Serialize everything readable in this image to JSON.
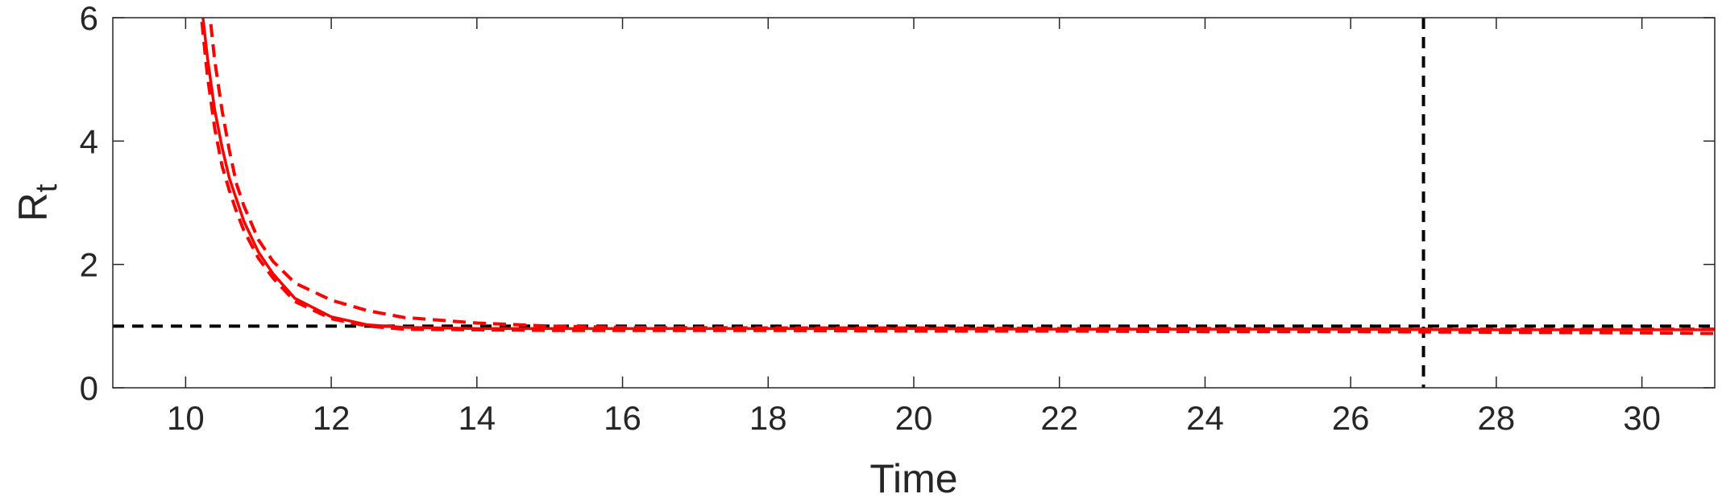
{
  "chart_data": {
    "type": "line",
    "title": "",
    "xlabel": "Time",
    "ylabel": {
      "main": "R",
      "subscript": "t"
    },
    "xlim": [
      9,
      31
    ],
    "ylim": [
      0,
      6
    ],
    "xticks": [
      "10",
      "12",
      "14",
      "16",
      "18",
      "20",
      "22",
      "24",
      "26",
      "28",
      "30"
    ],
    "yticks": [
      "0",
      "2",
      "4",
      "6"
    ],
    "grid": false,
    "legend": "none",
    "colors": {
      "series": "#ff0000",
      "reference": "#000000",
      "axes": "#262626"
    },
    "series": [
      {
        "style": "solid",
        "x": [
          10.0,
          10.2,
          10.3,
          10.4,
          10.5,
          10.6,
          10.7,
          10.8,
          11.0,
          11.2,
          11.5,
          12.0,
          12.5,
          13.0,
          14.0,
          15.0,
          16.0,
          18.0,
          20.0,
          22.0,
          24.0,
          26.0,
          28.0,
          30.0,
          31.0
        ],
        "y": [
          8.5,
          6.4,
          5.35,
          4.5,
          3.9,
          3.4,
          3.05,
          2.7,
          2.2,
          1.85,
          1.45,
          1.15,
          1.02,
          0.98,
          0.96,
          0.96,
          0.96,
          0.96,
          0.96,
          0.95,
          0.95,
          0.95,
          0.94,
          0.94,
          0.94
        ]
      },
      {
        "style": "dashed",
        "x": [
          10.0,
          10.3,
          10.4,
          10.5,
          10.6,
          10.7,
          10.8,
          11.0,
          11.2,
          11.5,
          12.0,
          12.5,
          13.0,
          14.0,
          15.0,
          16.0,
          18.0,
          20.0,
          22.0,
          24.0,
          26.0,
          28.0,
          30.0,
          31.0
        ],
        "y": [
          8.8,
          6.4,
          5.3,
          4.5,
          3.85,
          3.3,
          2.95,
          2.4,
          2.05,
          1.7,
          1.42,
          1.25,
          1.14,
          1.05,
          1.0,
          0.98,
          0.97,
          0.97,
          0.96,
          0.96,
          0.95,
          0.95,
          0.95,
          0.95
        ]
      },
      {
        "style": "dashed",
        "x": [
          10.0,
          10.2,
          10.3,
          10.4,
          10.5,
          10.6,
          10.7,
          10.8,
          11.0,
          11.2,
          11.5,
          12.0,
          12.5,
          13.0,
          14.0,
          15.0,
          16.0,
          18.0,
          20.0,
          22.0,
          24.0,
          26.0,
          28.0,
          30.0,
          31.0
        ],
        "y": [
          8.2,
          6.2,
          5.05,
          4.2,
          3.6,
          3.2,
          2.85,
          2.55,
          2.1,
          1.78,
          1.4,
          1.12,
          1.0,
          0.95,
          0.94,
          0.93,
          0.93,
          0.93,
          0.92,
          0.92,
          0.91,
          0.91,
          0.9,
          0.89,
          0.88
        ]
      }
    ],
    "reference_lines": [
      {
        "orientation": "horizontal",
        "value": 1
      },
      {
        "orientation": "vertical",
        "value": 27
      }
    ]
  }
}
